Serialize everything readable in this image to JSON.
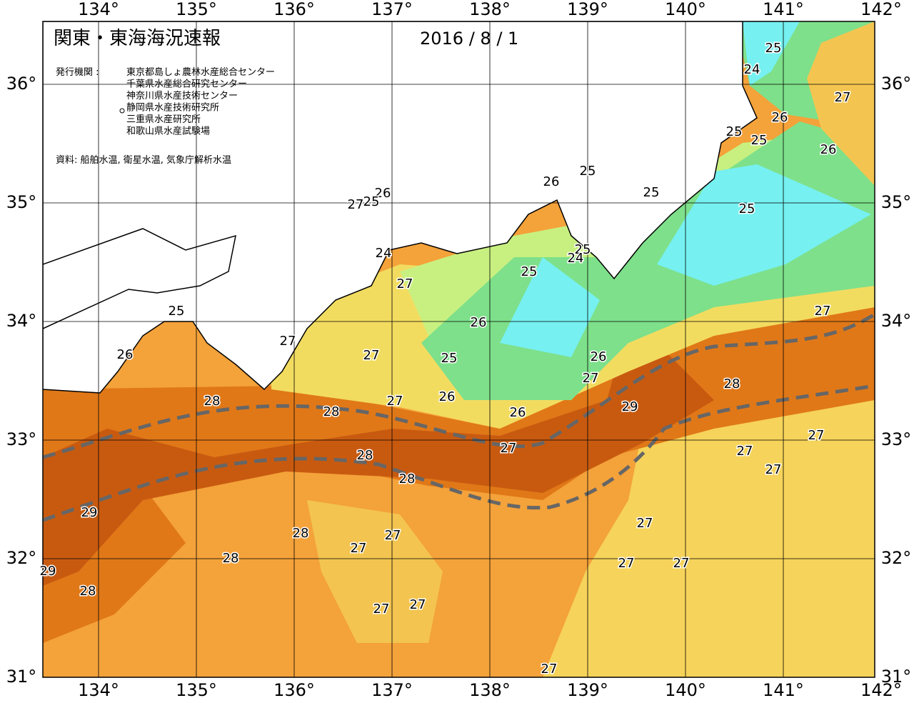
{
  "header": {
    "title": "関東・東海海況速報",
    "date": "2016 / 8 / 1"
  },
  "publishers": {
    "label": "発行機関 :",
    "names": [
      "東京都島しょ農林水産総合センター",
      "千葉県水産総合研究センター",
      "神奈川県水産技術センター",
      "静岡県水産技術研究所",
      "三重県水産研究所",
      "和歌山県水産試験場"
    ]
  },
  "source": "資料: 船舶水温, 衛星水温, 気象庁解析水温",
  "longitude_labels": [
    "134°",
    "135°",
    "136°",
    "137°",
    "138°",
    "139°",
    "140°",
    "141°",
    "142°"
  ],
  "latitude_labels": [
    "31°",
    "32°",
    "33°",
    "34°",
    "35°",
    "36°"
  ],
  "contour_labels": [
    25,
    24,
    27,
    26,
    25,
    25,
    26,
    25,
    26,
    25,
    25,
    26,
    25,
    27,
    24,
    25,
    24,
    25,
    27,
    25,
    26,
    27,
    27,
    26,
    27,
    25,
    26,
    27,
    28,
    26,
    28,
    27,
    28,
    26,
    29,
    27,
    27,
    27,
    28,
    28,
    27,
    29,
    27,
    28,
    27,
    27,
    28,
    27,
    27,
    29,
    28,
    27,
    27,
    27
  ]
}
